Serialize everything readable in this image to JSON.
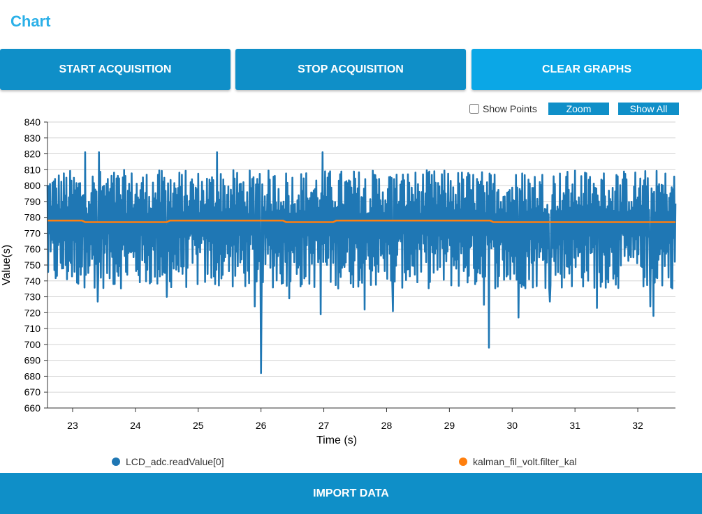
{
  "header": {
    "title": "Chart"
  },
  "toolbar": {
    "start_label": "START ACQUISITION",
    "stop_label": "STOP ACQUISITION",
    "clear_label": "CLEAR GRAPHS"
  },
  "chart_controls": {
    "show_points_label": "Show Points",
    "show_points_checked": false,
    "zoom_label": "Zoom",
    "show_all_label": "Show All"
  },
  "footer": {
    "import_label": "IMPORT DATA"
  },
  "colors": {
    "series1": "#1f77b4",
    "series2": "#ff7f0e",
    "button": "#0f8fc8",
    "title": "#2bb0e8"
  },
  "chart_data": {
    "type": "line",
    "xlabel": "Time (s)",
    "ylabel": "Value(s)",
    "xlim": [
      22.6,
      32.6
    ],
    "ylim": [
      660,
      840
    ],
    "xticks": [
      "23",
      "24",
      "25",
      "26",
      "27",
      "28",
      "29",
      "30",
      "31",
      "32"
    ],
    "yticks": [
      "660",
      "670",
      "680",
      "690",
      "700",
      "710",
      "720",
      "730",
      "740",
      "750",
      "760",
      "770",
      "780",
      "790",
      "800",
      "810",
      "820",
      "830",
      "840"
    ],
    "grid": "horizontal",
    "legend_position": "bottom",
    "series": [
      {
        "name": "LCD_adc.readValue[0]",
        "description": "noisy ADC signal oscillating mostly between ~735 and ~810",
        "sample_interval": 0.01,
        "typical_range": [
          735,
          810
        ],
        "outliers": [
          {
            "x": 23.2,
            "y": 821
          },
          {
            "x": 23.42,
            "y": 821
          },
          {
            "x": 23.4,
            "y": 727
          },
          {
            "x": 24.5,
            "y": 730
          },
          {
            "x": 25.3,
            "y": 821
          },
          {
            "x": 25.9,
            "y": 724
          },
          {
            "x": 26.0,
            "y": 682
          },
          {
            "x": 26.45,
            "y": 729
          },
          {
            "x": 26.95,
            "y": 719
          },
          {
            "x": 26.98,
            "y": 821
          },
          {
            "x": 27.65,
            "y": 722
          },
          {
            "x": 28.1,
            "y": 721
          },
          {
            "x": 29.55,
            "y": 725
          },
          {
            "x": 29.63,
            "y": 698
          },
          {
            "x": 30.1,
            "y": 717
          },
          {
            "x": 30.6,
            "y": 727
          },
          {
            "x": 31.35,
            "y": 723
          },
          {
            "x": 32.2,
            "y": 724
          },
          {
            "x": 32.25,
            "y": 718
          }
        ]
      },
      {
        "name": "kalman_fil_volt.filter_kal",
        "x": [
          22.6,
          23.15,
          23.2,
          24.5,
          24.55,
          26.35,
          26.4,
          27.15,
          27.2,
          29.65,
          29.7,
          32.6
        ],
        "y": [
          778,
          778,
          777,
          777,
          778,
          778,
          777,
          777,
          778,
          778,
          777,
          777
        ]
      }
    ]
  }
}
